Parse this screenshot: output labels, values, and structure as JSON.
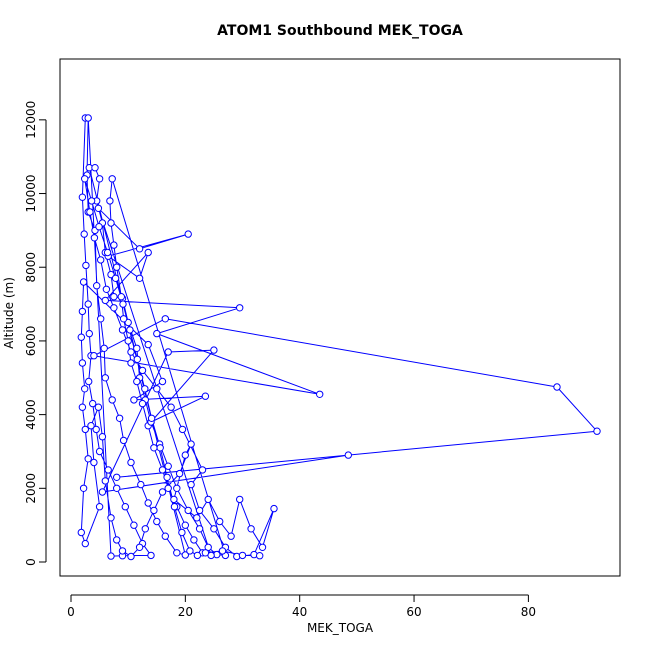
{
  "chart_data": {
    "type": "line",
    "title": "ATOM1 Southbound MEK_TOGA",
    "xlabel": "MEK_TOGA",
    "ylabel": "Altitude (m)",
    "xlim": [
      0,
      95
    ],
    "ylim": [
      -100,
      13000
    ],
    "x_ticks": [
      0,
      20,
      40,
      60,
      80
    ],
    "y_ticks": [
      0,
      2000,
      4000,
      6000,
      8000,
      10000,
      12000
    ],
    "x_tick_labels": [
      "0",
      "20",
      "40",
      "60",
      "80"
    ],
    "y_tick_labels": [
      "0",
      "2000",
      "4000",
      "6000",
      "8000",
      "10000",
      "12000"
    ],
    "grid": false,
    "marker": "open-circle",
    "color": "#0000ff",
    "series": [
      {
        "values": [
          [
            2.5,
            12050
          ],
          [
            2.0,
            9900
          ],
          [
            2.3,
            8900
          ],
          [
            2.6,
            8050
          ],
          [
            3.0,
            7000
          ],
          [
            3.2,
            6200
          ],
          [
            3.5,
            5600
          ],
          [
            3.1,
            4900
          ],
          [
            3.8,
            4300
          ],
          [
            4.4,
            3600
          ],
          [
            5.0,
            3000
          ],
          [
            6.5,
            2500
          ],
          [
            8.0,
            2000
          ],
          [
            9.5,
            1500
          ],
          [
            11.0,
            1000
          ],
          [
            12.5,
            500
          ],
          [
            14.0,
            180
          ],
          [
            9.0,
            170
          ],
          [
            7.0,
            160
          ],
          [
            3.0,
            12050
          ],
          [
            2.8,
            10500
          ],
          [
            3.0,
            9500
          ],
          [
            4.2,
            9000
          ],
          [
            4.5,
            7500
          ],
          [
            5.2,
            6600
          ],
          [
            5.8,
            5800
          ],
          [
            6.0,
            5000
          ],
          [
            7.2,
            4400
          ],
          [
            8.5,
            3900
          ],
          [
            9.2,
            3300
          ],
          [
            10.5,
            2700
          ],
          [
            12.2,
            2100
          ],
          [
            13.5,
            1600
          ],
          [
            15.0,
            1100
          ],
          [
            16.5,
            700
          ],
          [
            18.5,
            250
          ],
          [
            20.0,
            190
          ],
          [
            3.2,
            10700
          ],
          [
            4.2,
            10700
          ],
          [
            5.0,
            10400
          ],
          [
            4.5,
            9800
          ],
          [
            5.5,
            9200
          ],
          [
            6.0,
            8400
          ],
          [
            7.0,
            7800
          ],
          [
            7.5,
            7200
          ],
          [
            9.0,
            7150
          ],
          [
            10.0,
            6500
          ],
          [
            11.5,
            5800
          ],
          [
            12.0,
            5000
          ],
          [
            13.0,
            4400
          ],
          [
            14.0,
            3800
          ],
          [
            15.5,
            3200
          ],
          [
            17.0,
            2600
          ],
          [
            18.5,
            2000
          ],
          [
            20.5,
            1400
          ],
          [
            22.5,
            900
          ],
          [
            24.0,
            400
          ],
          [
            25.5,
            200
          ],
          [
            27.0,
            180
          ],
          [
            7.2,
            10400
          ],
          [
            6.8,
            9800
          ],
          [
            7.0,
            9200
          ],
          [
            7.5,
            8600
          ],
          [
            8.0,
            8000
          ],
          [
            8.8,
            7200
          ],
          [
            9.2,
            6600
          ],
          [
            10.0,
            6000
          ],
          [
            10.5,
            5400
          ],
          [
            11.5,
            4900
          ],
          [
            12.5,
            4300
          ],
          [
            13.5,
            3700
          ],
          [
            14.5,
            3100
          ],
          [
            16.0,
            2500
          ],
          [
            17.0,
            2000
          ],
          [
            18.5,
            1500
          ],
          [
            20.0,
            1000
          ],
          [
            21.5,
            600
          ],
          [
            23.0,
            250
          ],
          [
            24.5,
            180
          ],
          [
            4.8,
            9600
          ],
          [
            12.0,
            8500
          ],
          [
            20.5,
            8900
          ],
          [
            6.5,
            8300
          ],
          [
            12.0,
            7700
          ],
          [
            13.5,
            8400
          ],
          [
            6.0,
            7100
          ],
          [
            29.5,
            6900
          ],
          [
            15.0,
            6200
          ],
          [
            43.5,
            4550
          ],
          [
            4.0,
            5600
          ],
          [
            16.5,
            6600
          ],
          [
            85.0,
            4750
          ],
          [
            92.0,
            3550
          ],
          [
            8.0,
            2300
          ],
          [
            48.5,
            2900
          ],
          [
            5.5,
            1900
          ],
          [
            17.0,
            5700
          ],
          [
            25.0,
            5750
          ],
          [
            14.0,
            3800
          ],
          [
            23.5,
            4500
          ],
          [
            11.0,
            4400
          ],
          [
            16.0,
            4900
          ],
          [
            13.5,
            5900
          ],
          [
            2.2,
            7600
          ],
          [
            2.0,
            6800
          ],
          [
            1.8,
            6100
          ],
          [
            2.0,
            5400
          ],
          [
            2.4,
            4700
          ],
          [
            2.0,
            4200
          ],
          [
            2.5,
            3600
          ],
          [
            3.0,
            2800
          ],
          [
            2.2,
            2000
          ],
          [
            1.8,
            800
          ],
          [
            2.5,
            500
          ],
          [
            5.0,
            1500
          ],
          [
            4.0,
            2700
          ],
          [
            3.5,
            3700
          ],
          [
            4.8,
            4200
          ],
          [
            5.5,
            3400
          ],
          [
            6.0,
            2200
          ],
          [
            7.0,
            1200
          ],
          [
            8.0,
            600
          ],
          [
            9.0,
            300
          ],
          [
            10.5,
            150
          ],
          [
            12.0,
            400
          ],
          [
            13.0,
            900
          ],
          [
            14.5,
            1400
          ],
          [
            16.0,
            1900
          ],
          [
            19.0,
            2400
          ],
          [
            21.0,
            3200
          ],
          [
            20.0,
            2900
          ],
          [
            18.0,
            1700
          ],
          [
            22.0,
            1200
          ],
          [
            24.0,
            1700
          ],
          [
            26.0,
            1100
          ],
          [
            28.0,
            700
          ],
          [
            29.5,
            1700
          ],
          [
            31.5,
            900
          ],
          [
            33.5,
            400
          ],
          [
            35.5,
            1450
          ],
          [
            32.0,
            200
          ],
          [
            29.0,
            150
          ],
          [
            27.0,
            400
          ],
          [
            25.0,
            900
          ],
          [
            22.5,
            1400
          ],
          [
            21.0,
            2100
          ],
          [
            23.0,
            2500
          ],
          [
            19.5,
            3600
          ],
          [
            17.5,
            4200
          ],
          [
            15.0,
            4700
          ],
          [
            12.5,
            5200
          ],
          [
            10.5,
            5700
          ],
          [
            9.0,
            6300
          ],
          [
            7.5,
            6900
          ],
          [
            6.2,
            7400
          ],
          [
            5.2,
            8200
          ],
          [
            4.1,
            8800
          ],
          [
            3.3,
            9500
          ],
          [
            2.4,
            10400
          ],
          [
            3.6,
            9800
          ],
          [
            4.9,
            9100
          ],
          [
            6.4,
            8400
          ],
          [
            7.8,
            7700
          ],
          [
            9.1,
            7000
          ],
          [
            10.3,
            6300
          ],
          [
            11.6,
            5500
          ],
          [
            12.9,
            4700
          ],
          [
            14.1,
            3900
          ],
          [
            15.6,
            3100
          ],
          [
            16.8,
            2300
          ],
          [
            18.1,
            1500
          ],
          [
            19.4,
            800
          ],
          [
            20.8,
            300
          ],
          [
            22.1,
            180
          ],
          [
            23.5,
            250
          ],
          [
            26.5,
            300
          ],
          [
            30.0,
            180
          ],
          [
            33.0,
            170
          ]
        ]
      }
    ]
  }
}
